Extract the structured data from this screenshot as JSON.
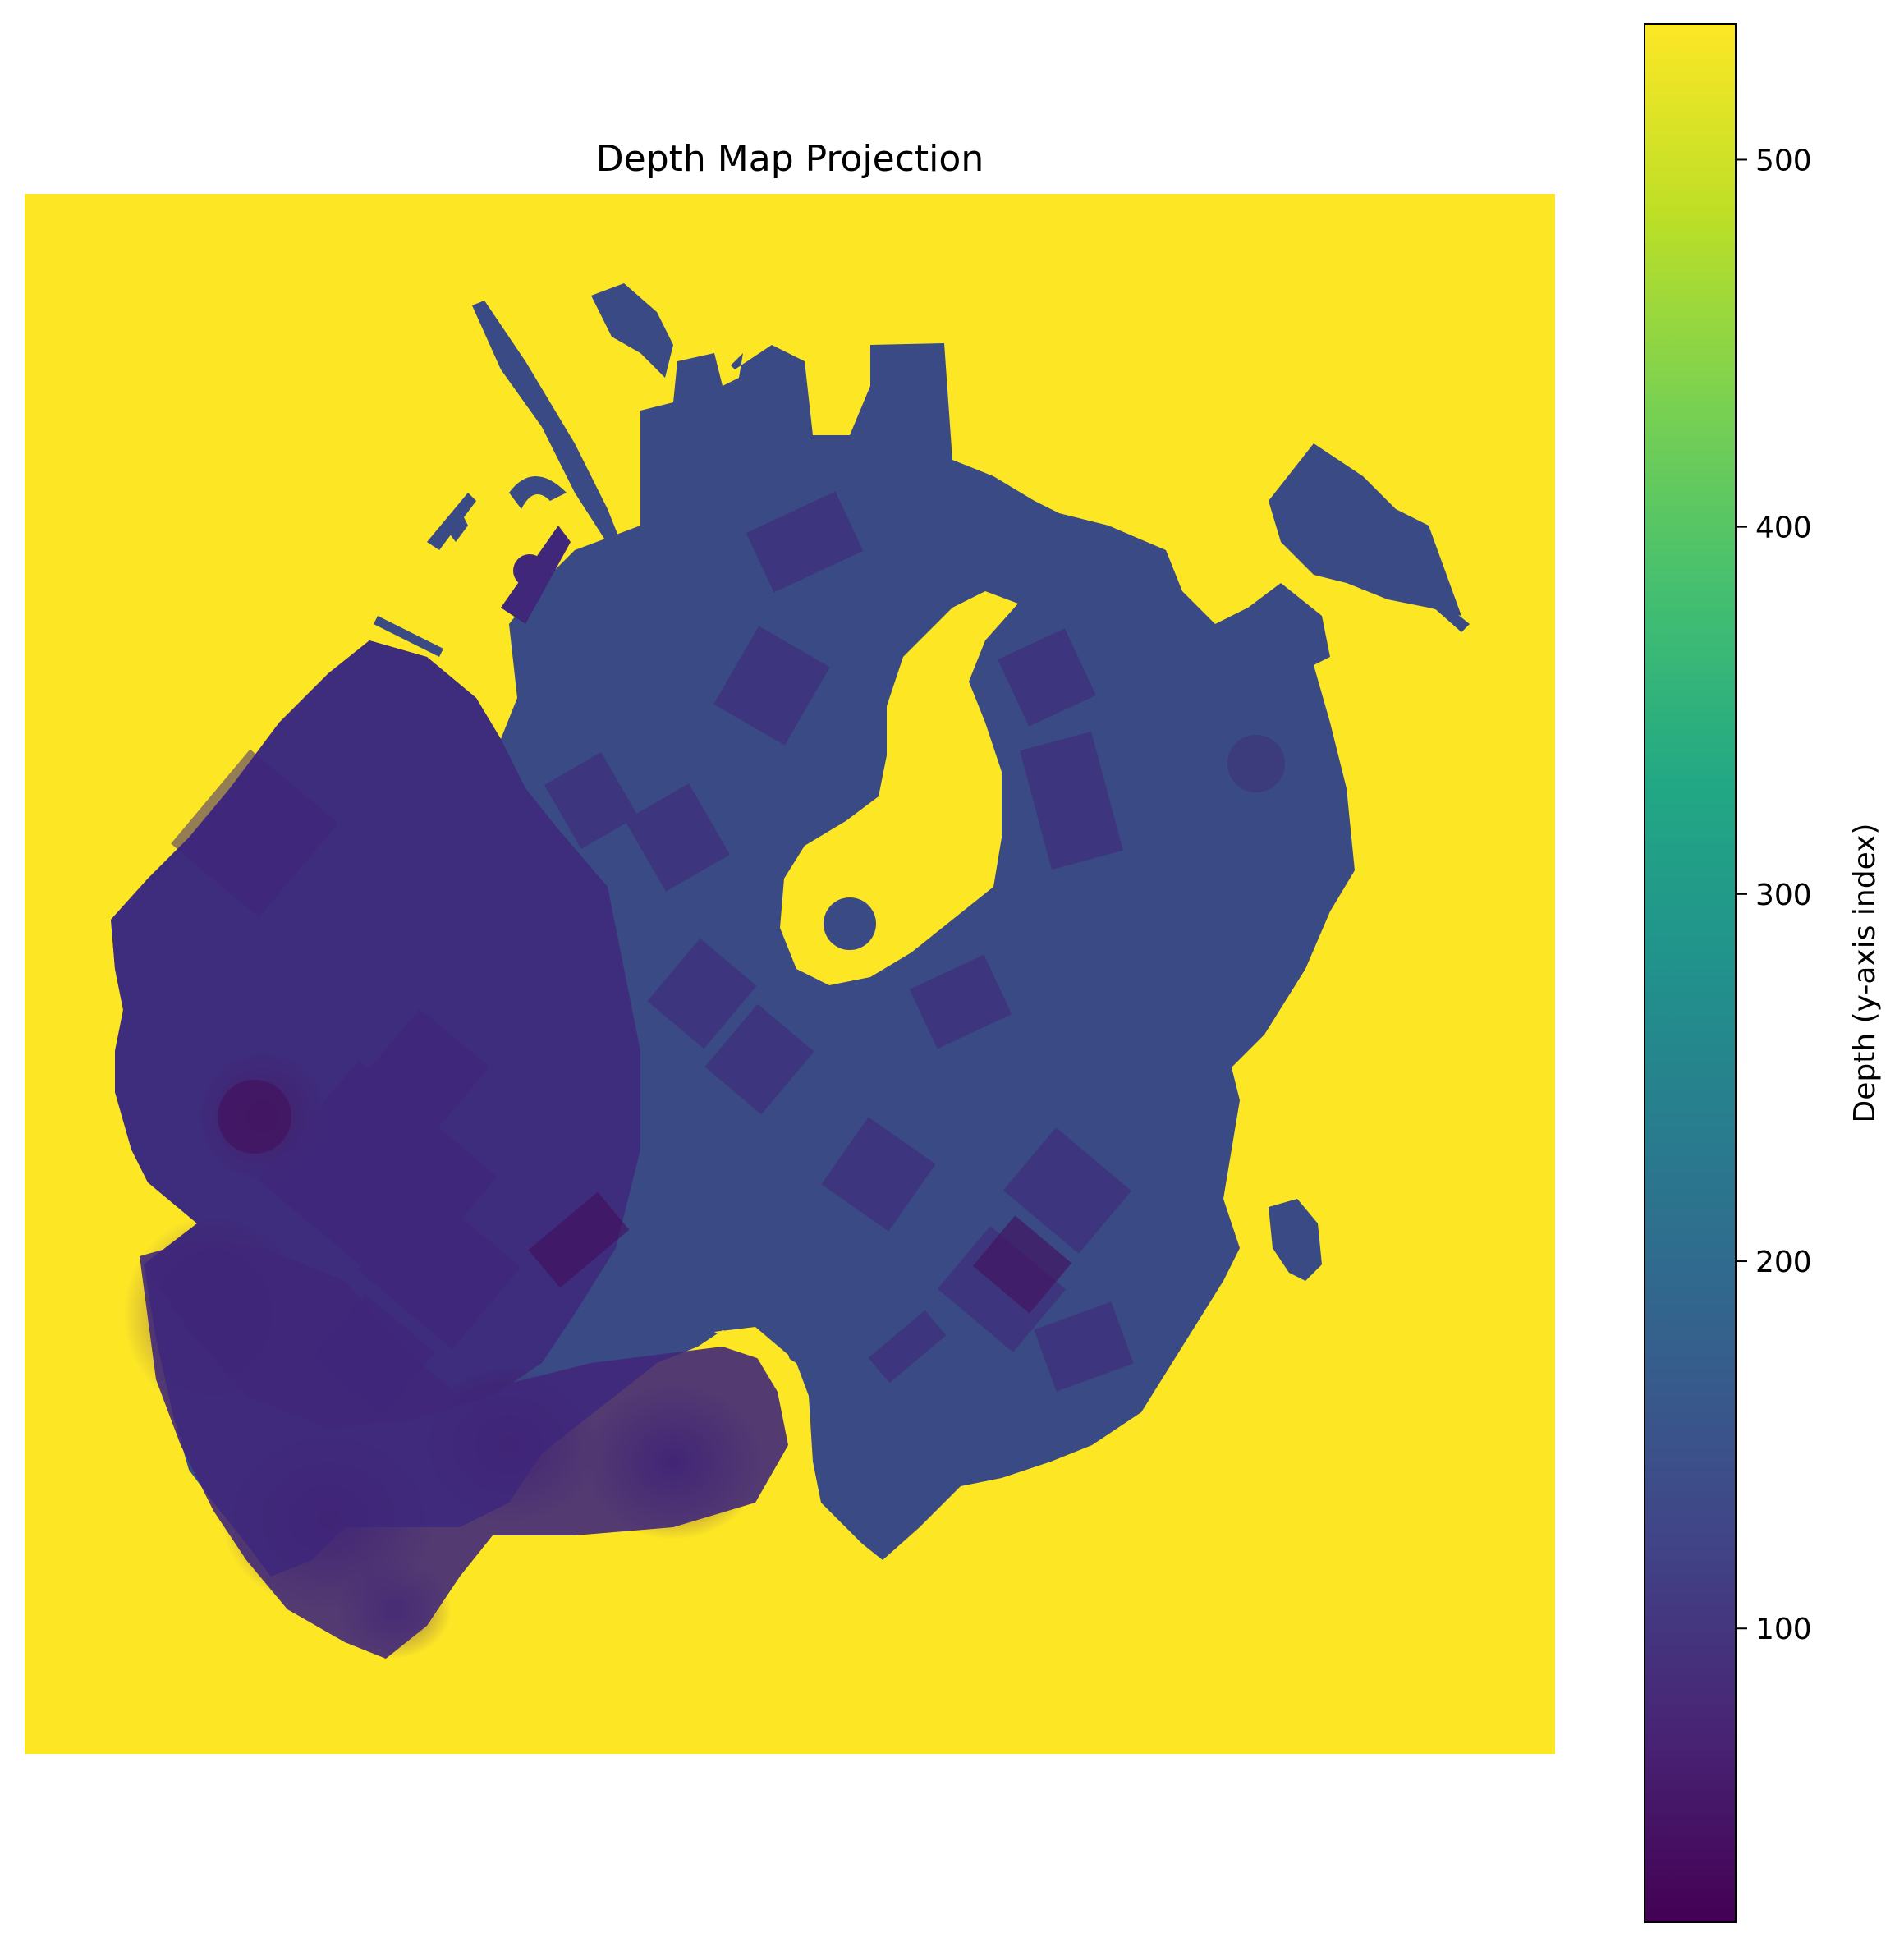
{
  "chart_data": {
    "type": "heatmap",
    "title": "Depth Map Projection",
    "colormap": "viridis",
    "background_value": 537,
    "colorbar": {
      "label": "Depth (y-axis index)",
      "min": 20,
      "max": 537,
      "ticks": [
        100,
        200,
        300,
        400,
        500
      ],
      "tick_labels": [
        "100",
        "200",
        "300",
        "400",
        "500"
      ]
    },
    "axes_visible": false,
    "grid": false,
    "colors": {
      "background_yellow": "#fde725",
      "surface_main": "#3a4a85",
      "surface_dark": "#40277a",
      "shadow_deep": "#44105c"
    }
  }
}
